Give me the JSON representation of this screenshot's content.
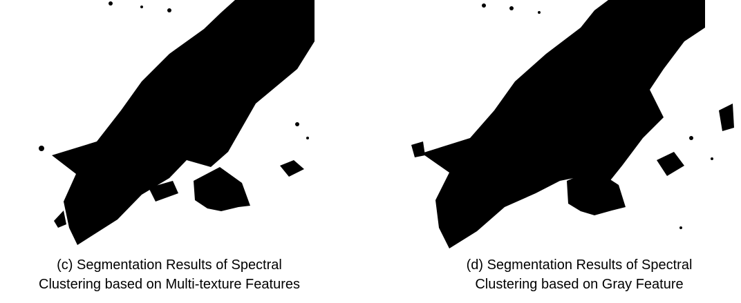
{
  "figure": {
    "panels": [
      {
        "caption": [
          "(c) Segmentation Results of Spectral",
          "Clustering based on Multi-texture Features"
        ]
      },
      {
        "caption": [
          "(d) Segmentation Results of Spectral",
          "Clustering based on Gray Feature"
        ]
      }
    ]
  }
}
